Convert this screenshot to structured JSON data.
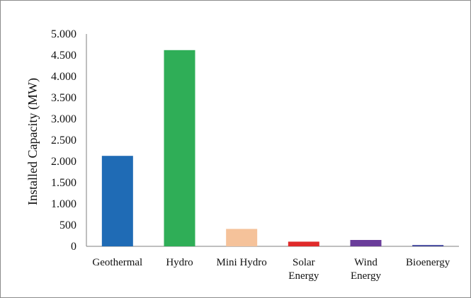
{
  "chart_data": {
    "type": "bar",
    "categories": [
      [
        "Geothermal"
      ],
      [
        "Hydro"
      ],
      [
        "Mini Hydro"
      ],
      [
        "Solar",
        "Energy"
      ],
      [
        "Wind",
        "Energy"
      ],
      [
        "Bioenergy"
      ]
    ],
    "values": [
      2130,
      4620,
      410,
      110,
      150,
      30
    ],
    "colors": [
      "#1f6bb5",
      "#2fae57",
      "#f5c29a",
      "#e02a2a",
      "#6a3d9a",
      "#3a3f9a"
    ],
    "ylabel": "Installed Capacity (MW)",
    "xlabel": "",
    "ylim": [
      0,
      5000
    ],
    "yticks": [
      0,
      500,
      1000,
      1500,
      2000,
      2500,
      3000,
      3500,
      4000,
      4500,
      5000
    ],
    "ytick_labels": [
      "0",
      "500",
      "1.000",
      "1.500",
      "2.000",
      "2.500",
      "3.000",
      "3.500",
      "4.000",
      "4.500",
      "5.000"
    ],
    "grid": false,
    "legend": "none"
  }
}
